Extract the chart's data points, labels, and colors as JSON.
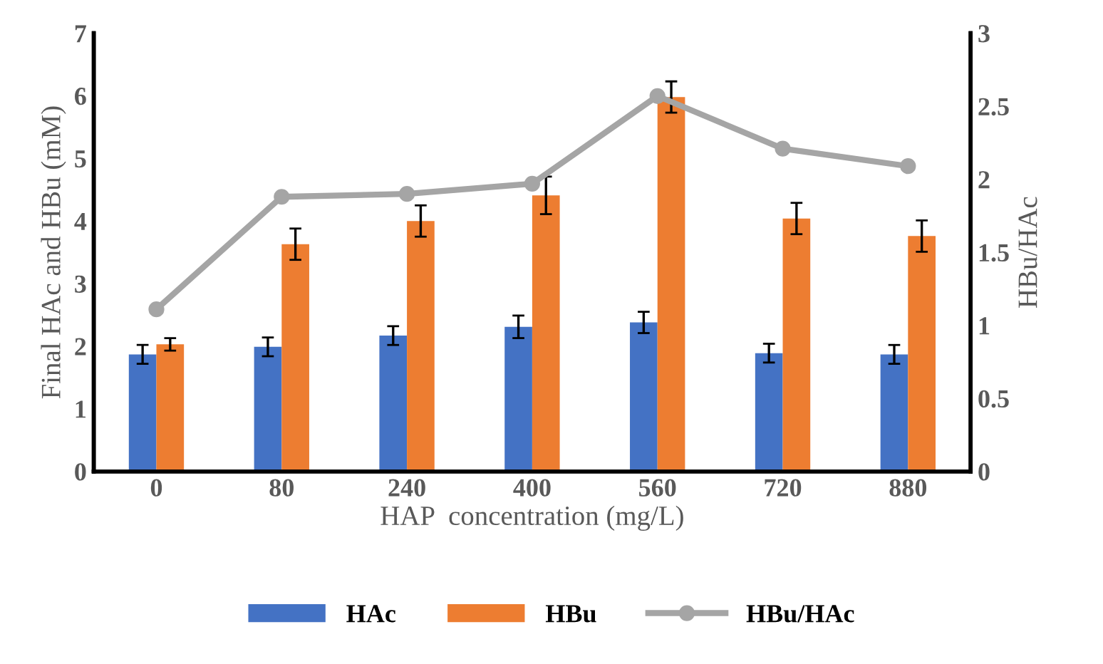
{
  "chart_data": {
    "type": "bar",
    "xlabel": "HAP  concentration (mg/L)",
    "ylabel": "Final HAc and HBu (mM)",
    "y2label": "HBu/HAc",
    "categories": [
      "0",
      "80",
      "240",
      "400",
      "560",
      "720",
      "880"
    ],
    "series": [
      {
        "name": "HAc",
        "color": "#4472c4",
        "values": [
          1.87,
          1.99,
          2.17,
          2.31,
          2.38,
          1.89,
          1.87
        ],
        "errors": [
          0.15,
          0.15,
          0.15,
          0.18,
          0.17,
          0.15,
          0.15
        ]
      },
      {
        "name": "HBu",
        "color": "#ed7d31",
        "values": [
          2.03,
          3.63,
          4.0,
          4.41,
          5.98,
          4.04,
          3.76
        ],
        "errors": [
          0.1,
          0.25,
          0.25,
          0.3,
          0.25,
          0.25,
          0.25
        ]
      },
      {
        "name": "HBu/HAc",
        "type": "line",
        "axis": "y2",
        "color": "#a5a5a5",
        "values": [
          1.11,
          1.88,
          1.9,
          1.97,
          2.57,
          2.21,
          2.09
        ]
      }
    ],
    "ylim": [
      0,
      7
    ],
    "yticks": [
      0,
      1,
      2,
      3,
      4,
      5,
      6,
      7
    ],
    "y2lim": [
      0,
      3
    ],
    "y2ticks": [
      0,
      0.5,
      1,
      1.5,
      2,
      2.5,
      3
    ],
    "marker": "circle",
    "grid": false,
    "legend": "bottom"
  }
}
